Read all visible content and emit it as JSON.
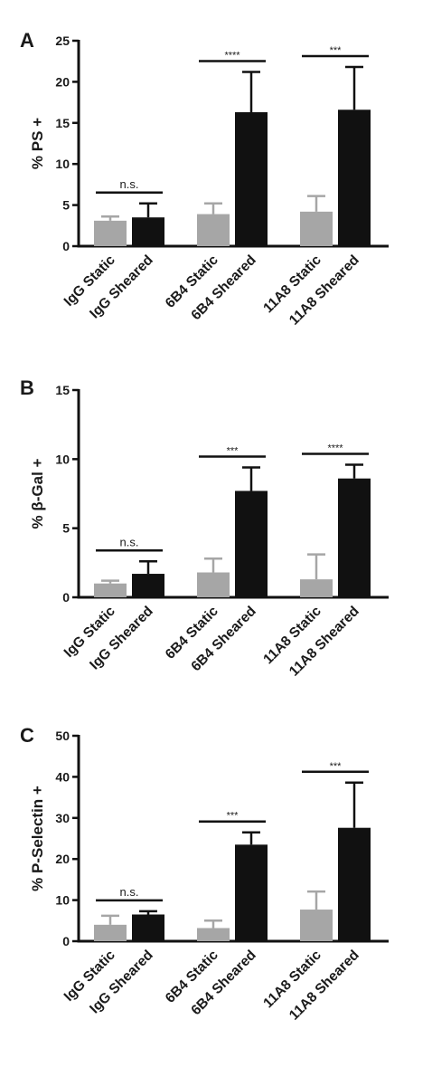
{
  "colors": {
    "static": "#a6a6a6",
    "sheared": "#111111",
    "axis": "#111111"
  },
  "chart_data": [
    {
      "panel": "A",
      "type": "bar",
      "ylabel": "% PS +",
      "ylim": [
        0,
        25
      ],
      "yticks": [
        0,
        5,
        10,
        15,
        20,
        25
      ],
      "categories": [
        "IgG Static",
        "IgG Sheared",
        "6B4 Static",
        "6B4 Sheared",
        "11A8 Static",
        "11A8 Sheared"
      ],
      "values": [
        3.1,
        3.5,
        3.9,
        16.3,
        4.2,
        16.6
      ],
      "errors": [
        0.5,
        1.7,
        1.3,
        4.9,
        1.9,
        5.2
      ],
      "fill": [
        "static",
        "sheared",
        "static",
        "sheared",
        "static",
        "sheared"
      ],
      "significance": [
        {
          "pair": [
            0,
            1
          ],
          "label": "n.s."
        },
        {
          "pair": [
            2,
            3
          ],
          "label": "****"
        },
        {
          "pair": [
            4,
            5
          ],
          "label": "***"
        }
      ]
    },
    {
      "panel": "B",
      "type": "bar",
      "ylabel": "% β-Gal +",
      "ylim": [
        0,
        15
      ],
      "yticks": [
        0,
        5,
        10,
        15
      ],
      "categories": [
        "IgG Static",
        "IgG Sheared",
        "6B4 Static",
        "6B4 Sheared",
        "11A8 Static",
        "11A8 Sheared"
      ],
      "values": [
        1.0,
        1.7,
        1.8,
        7.7,
        1.3,
        8.6
      ],
      "errors": [
        0.2,
        0.9,
        1.0,
        1.7,
        1.8,
        1.0
      ],
      "fill": [
        "static",
        "sheared",
        "static",
        "sheared",
        "static",
        "sheared"
      ],
      "significance": [
        {
          "pair": [
            0,
            1
          ],
          "label": "n.s."
        },
        {
          "pair": [
            2,
            3
          ],
          "label": "***"
        },
        {
          "pair": [
            4,
            5
          ],
          "label": "****"
        }
      ]
    },
    {
      "panel": "C",
      "type": "bar",
      "ylabel": "% P-Selectin +",
      "ylim": [
        0,
        50
      ],
      "yticks": [
        0,
        10,
        20,
        30,
        40,
        50
      ],
      "categories": [
        "IgG Static",
        "IgG Sheared",
        "6B4 Static",
        "6B4 Sheared",
        "11A8 Static",
        "11A8 Sheared"
      ],
      "values": [
        4.0,
        6.5,
        3.2,
        23.5,
        7.7,
        27.6
      ],
      "errors": [
        2.2,
        0.8,
        1.8,
        3.0,
        4.4,
        11.0
      ],
      "fill": [
        "static",
        "sheared",
        "static",
        "sheared",
        "static",
        "sheared"
      ],
      "significance": [
        {
          "pair": [
            0,
            1
          ],
          "label": "n.s."
        },
        {
          "pair": [
            2,
            3
          ],
          "label": "***"
        },
        {
          "pair": [
            4,
            5
          ],
          "label": "***"
        }
      ]
    }
  ]
}
